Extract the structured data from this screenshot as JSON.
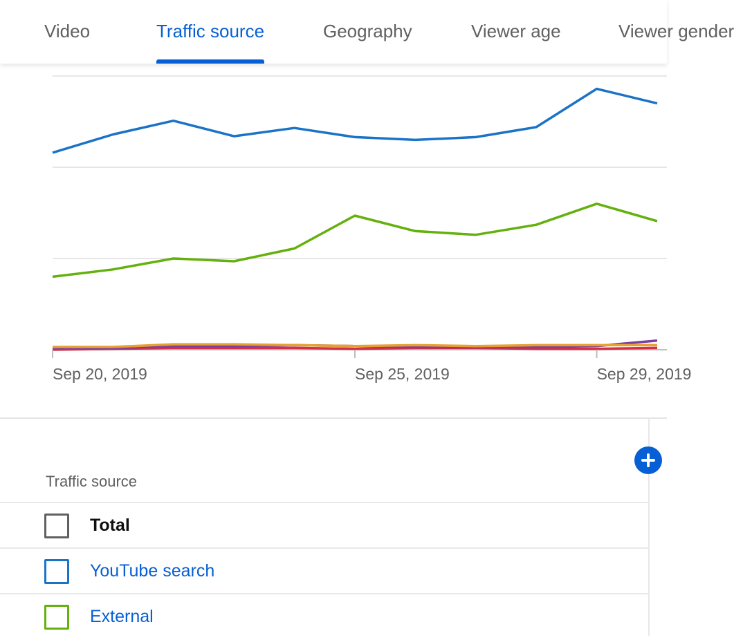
{
  "tabs": [
    {
      "label": "Video",
      "active": false
    },
    {
      "label": "Traffic source",
      "active": true
    },
    {
      "label": "Geography",
      "active": false
    },
    {
      "label": "Viewer age",
      "active": false
    },
    {
      "label": "Viewer gender",
      "active": false
    }
  ],
  "colors": {
    "accent": "#065fd4",
    "youtube_search": "#1a73c6",
    "external": "#64b00c",
    "purple": "#7b3fa0",
    "orange": "#e8a030",
    "red": "#d4304a",
    "gray_border": "#606060"
  },
  "chart_data": {
    "type": "line",
    "x": [
      "Sep 20, 2019",
      "Sep 21, 2019",
      "Sep 22, 2019",
      "Sep 23, 2019",
      "Sep 24, 2019",
      "Sep 25, 2019",
      "Sep 26, 2019",
      "Sep 27, 2019",
      "Sep 28, 2019",
      "Sep 29, 2019",
      "Sep 30, 2019"
    ],
    "x_tick_labels": [
      {
        "index": 0,
        "label": "Sep 20, 2019"
      },
      {
        "index": 5,
        "label": "Sep 25, 2019"
      },
      {
        "index": 9,
        "label": "Sep 29, 2019"
      }
    ],
    "ylim": [
      0,
      3
    ],
    "grid": true,
    "series": [
      {
        "key": "youtube_search",
        "color": "#1a73c6",
        "values": [
          2.16,
          2.36,
          2.51,
          2.34,
          2.43,
          2.33,
          2.3,
          2.33,
          2.44,
          2.86,
          2.7
        ]
      },
      {
        "key": "external",
        "color": "#64b00c",
        "values": [
          0.8,
          0.88,
          1.0,
          0.97,
          1.11,
          1.47,
          1.3,
          1.26,
          1.37,
          1.6,
          1.41
        ]
      },
      {
        "key": "purple",
        "color": "#7b3fa0",
        "values": [
          0.02,
          0.02,
          0.04,
          0.04,
          0.05,
          0.04,
          0.03,
          0.03,
          0.03,
          0.04,
          0.1
        ]
      },
      {
        "key": "orange",
        "color": "#e8a030",
        "values": [
          0.03,
          0.03,
          0.06,
          0.06,
          0.05,
          0.04,
          0.05,
          0.04,
          0.05,
          0.05,
          0.05
        ]
      },
      {
        "key": "red",
        "color": "#d4304a",
        "values": [
          0.0,
          0.01,
          0.02,
          0.02,
          0.02,
          0.01,
          0.02,
          0.02,
          0.01,
          0.01,
          0.02
        ]
      }
    ]
  },
  "table": {
    "header": "Traffic source",
    "rows": [
      {
        "label": "Total",
        "color": "#606060",
        "style": "total"
      },
      {
        "label": "YouTube search",
        "color": "#1a73c6",
        "style": "link"
      },
      {
        "label": "External",
        "color": "#64b00c",
        "style": "link"
      }
    ]
  }
}
